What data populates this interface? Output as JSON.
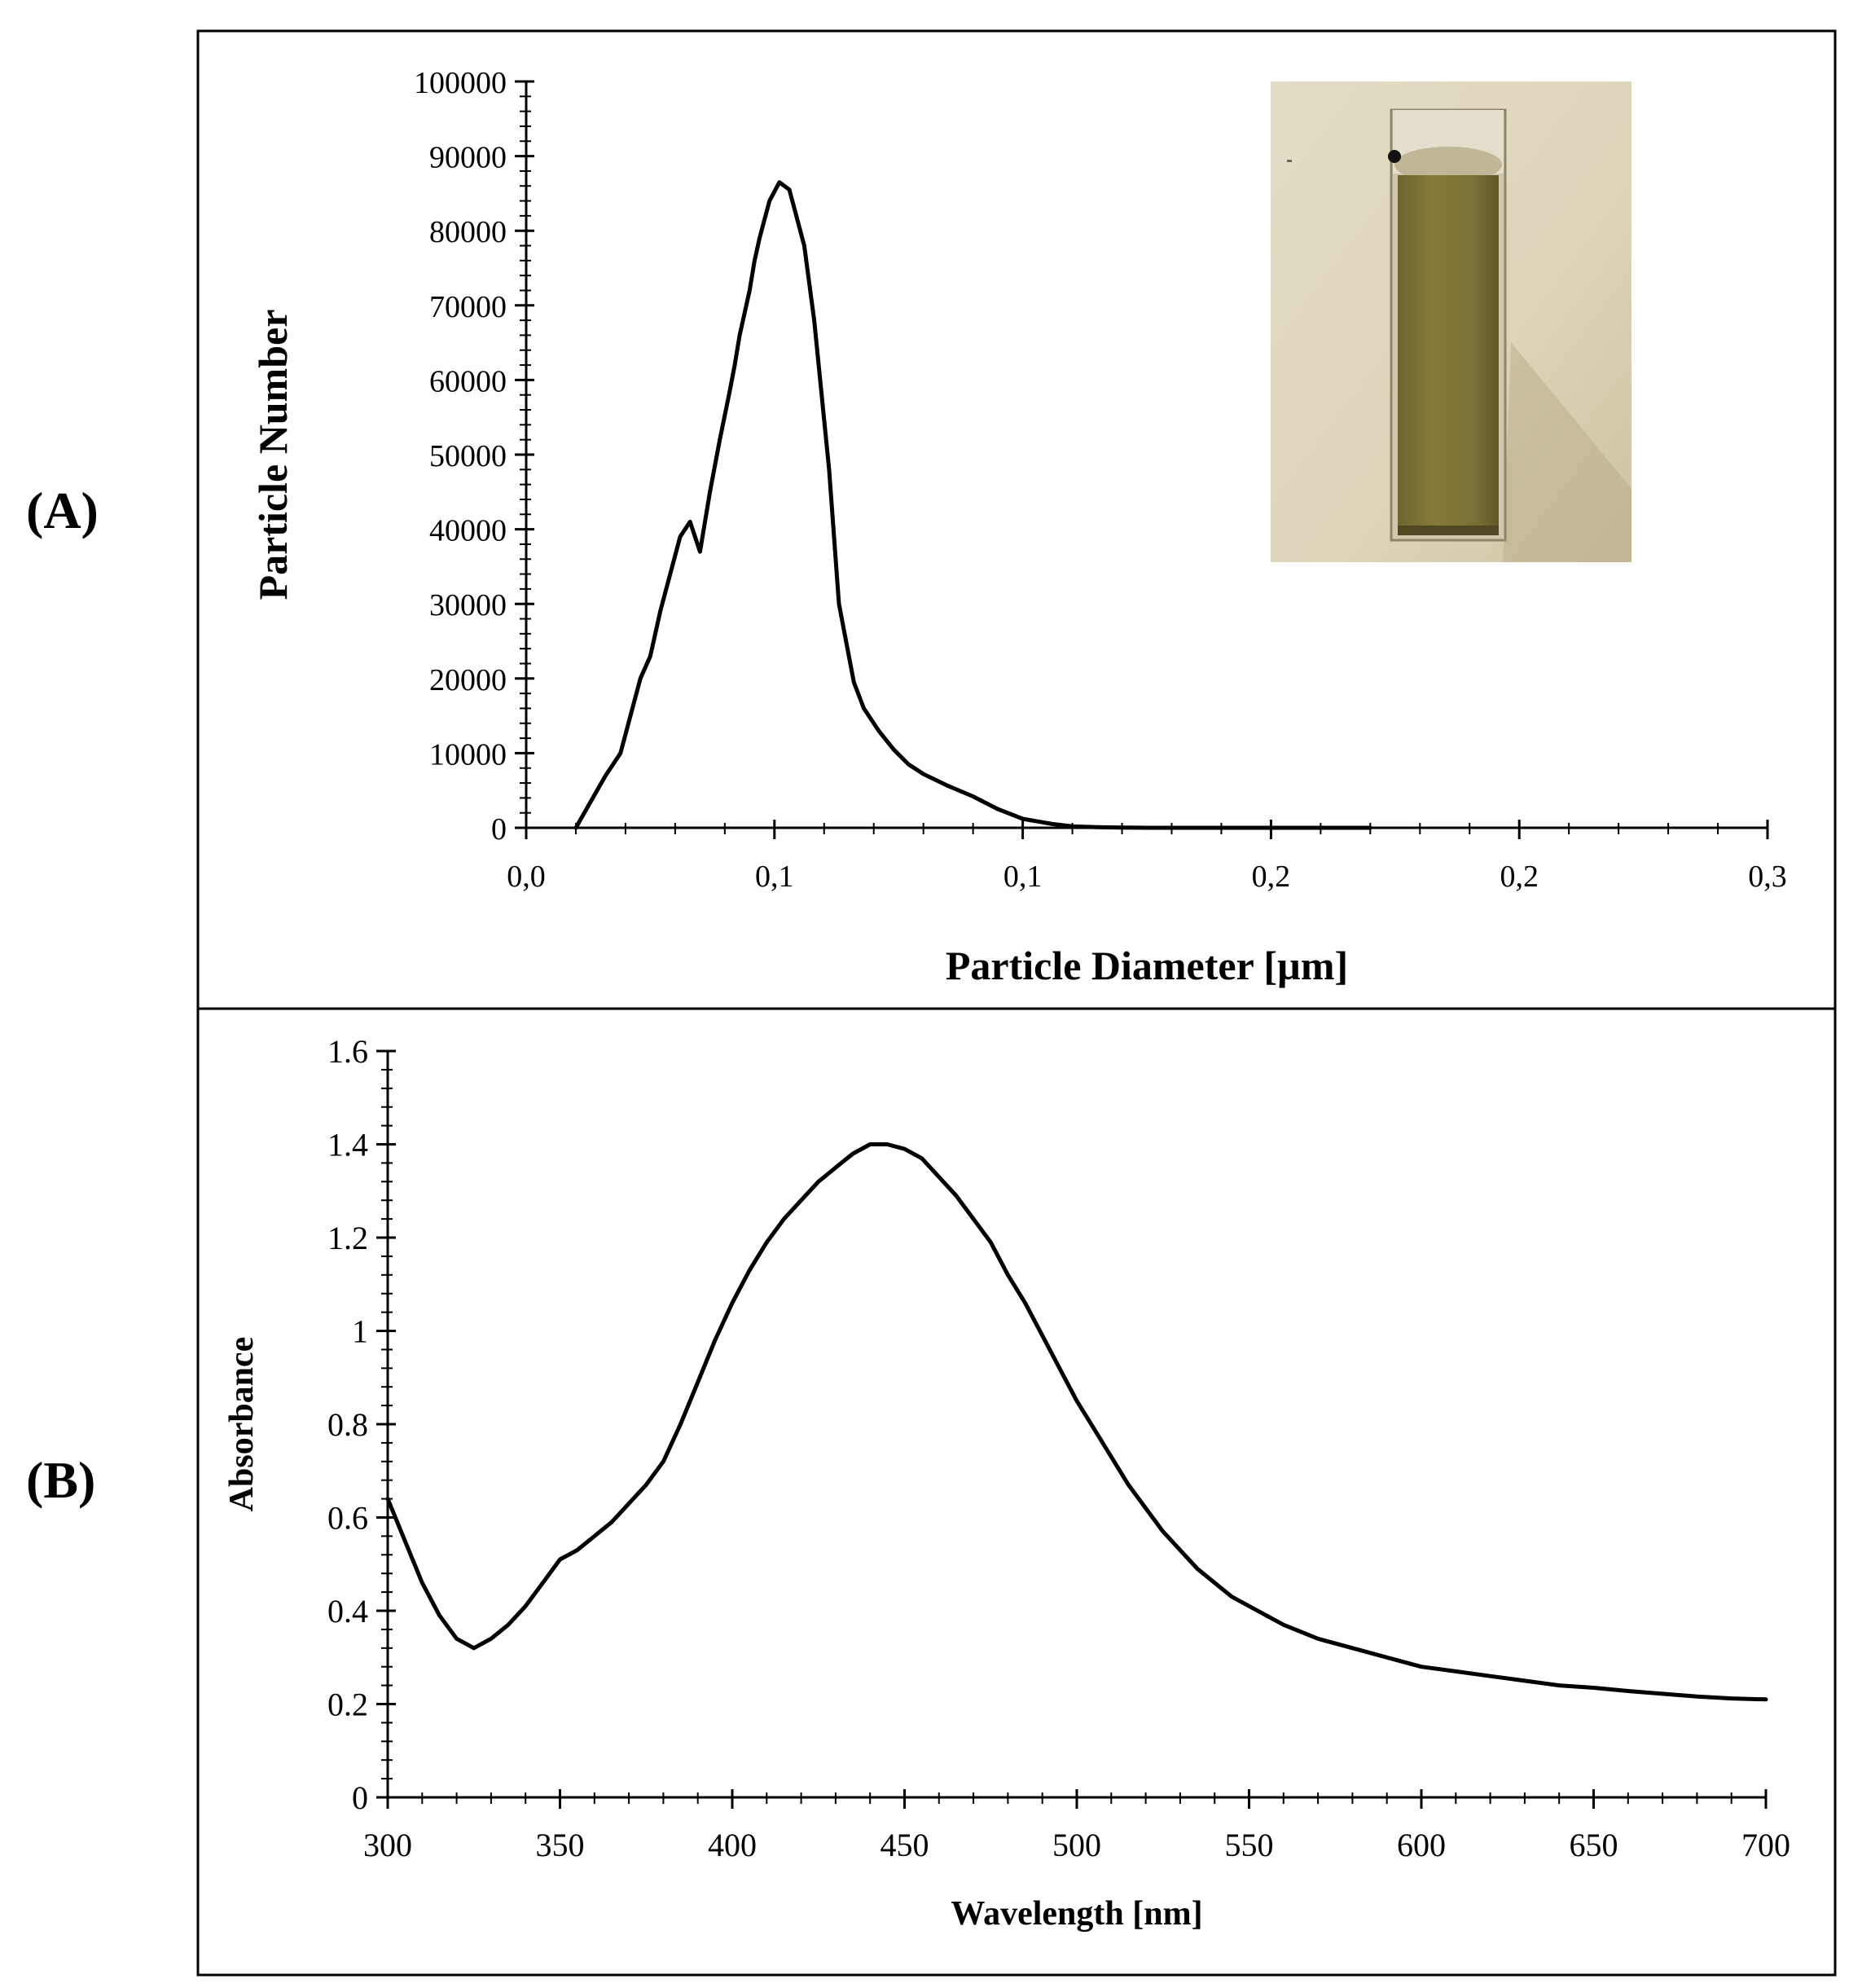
{
  "panels": {
    "a_label": "(A)",
    "b_label": "(B)"
  },
  "inset": {
    "description_icon": "cuvette-photo",
    "liquid_color": "#7e7435"
  },
  "chart_data": [
    {
      "type": "line",
      "title": "",
      "xlabel": "Particle Diameter [µm]",
      "ylabel": "Particle Number",
      "xlim": [
        0.0,
        0.25
      ],
      "ylim": [
        0,
        100000
      ],
      "x_ticks": [
        0.0,
        0.05,
        0.1,
        0.15,
        0.2,
        0.25
      ],
      "x_tick_labels": [
        "0,0",
        "0,1",
        "0,1",
        "0,2",
        "0,2",
        "0,3"
      ],
      "y_ticks": [
        0,
        10000,
        20000,
        30000,
        40000,
        50000,
        60000,
        70000,
        80000,
        90000,
        100000
      ],
      "y_tick_labels": [
        "0",
        "10000",
        "20000",
        "30000",
        "40000",
        "50000",
        "60000",
        "70000",
        "80000",
        "90000",
        "100000"
      ],
      "grid": false,
      "series": [
        {
          "x": [
            0.01,
            0.013,
            0.016,
            0.019,
            0.021,
            0.023,
            0.025,
            0.027,
            0.029,
            0.031,
            0.033,
            0.035,
            0.037,
            0.039,
            0.041,
            0.042,
            0.043,
            0.044,
            0.045,
            0.046,
            0.047,
            0.049,
            0.051,
            0.053,
            0.056,
            0.058,
            0.061,
            0.063,
            0.066,
            0.068,
            0.071,
            0.074,
            0.077,
            0.08,
            0.085,
            0.09,
            0.095,
            0.1,
            0.106,
            0.11,
            0.115,
            0.12,
            0.125,
            0.13,
            0.135,
            0.14,
            0.15,
            0.16,
            0.17
          ],
          "y": [
            0,
            3500,
            7000,
            10000,
            15000,
            20000,
            23000,
            29000,
            34000,
            39000,
            41000,
            37000,
            45000,
            52000,
            58500,
            62000,
            66000,
            69000,
            72000,
            76000,
            79000,
            84000,
            86500,
            85500,
            78000,
            68000,
            48000,
            30000,
            19500,
            16000,
            13000,
            10500,
            8500,
            7200,
            5600,
            4200,
            2500,
            1200,
            500,
            200,
            80,
            20,
            0,
            0,
            0,
            0,
            0,
            0,
            0
          ]
        }
      ]
    },
    {
      "type": "line",
      "title": "",
      "xlabel": "Wavelength [nm]",
      "ylabel": "Absorbance",
      "xlim": [
        300,
        700
      ],
      "ylim": [
        0,
        1.6
      ],
      "x_ticks": [
        300,
        350,
        400,
        450,
        500,
        550,
        600,
        650,
        700
      ],
      "x_tick_labels": [
        "300",
        "350",
        "400",
        "450",
        "500",
        "550",
        "600",
        "650",
        "700"
      ],
      "y_ticks": [
        0,
        0.2,
        0.4,
        0.6,
        0.8,
        1.0,
        1.2,
        1.4,
        1.6
      ],
      "y_tick_labels": [
        "0",
        "0.2",
        "0.4",
        "0.6",
        "0.8",
        "1",
        "1.2",
        "1.4",
        "1.6"
      ],
      "grid": false,
      "series": [
        {
          "x": [
            300,
            305,
            310,
            315,
            320,
            325,
            330,
            335,
            340,
            345,
            350,
            355,
            360,
            365,
            370,
            375,
            380,
            385,
            390,
            395,
            400,
            405,
            410,
            415,
            420,
            425,
            430,
            435,
            440,
            445,
            450,
            455,
            460,
            465,
            470,
            475,
            480,
            485,
            490,
            495,
            500,
            505,
            510,
            515,
            520,
            525,
            530,
            535,
            540,
            545,
            550,
            560,
            570,
            580,
            590,
            600,
            610,
            620,
            630,
            640,
            650,
            660,
            670,
            680,
            690,
            700
          ],
          "y": [
            0.64,
            0.55,
            0.46,
            0.39,
            0.34,
            0.32,
            0.34,
            0.37,
            0.41,
            0.46,
            0.51,
            0.53,
            0.56,
            0.59,
            0.63,
            0.67,
            0.72,
            0.8,
            0.89,
            0.98,
            1.06,
            1.13,
            1.19,
            1.24,
            1.28,
            1.32,
            1.35,
            1.38,
            1.4,
            1.4,
            1.39,
            1.37,
            1.33,
            1.29,
            1.24,
            1.19,
            1.12,
            1.06,
            0.99,
            0.92,
            0.85,
            0.79,
            0.73,
            0.67,
            0.62,
            0.57,
            0.53,
            0.49,
            0.46,
            0.43,
            0.41,
            0.37,
            0.34,
            0.32,
            0.3,
            0.28,
            0.27,
            0.26,
            0.25,
            0.24,
            0.235,
            0.228,
            0.222,
            0.216,
            0.212,
            0.21
          ]
        }
      ]
    }
  ]
}
